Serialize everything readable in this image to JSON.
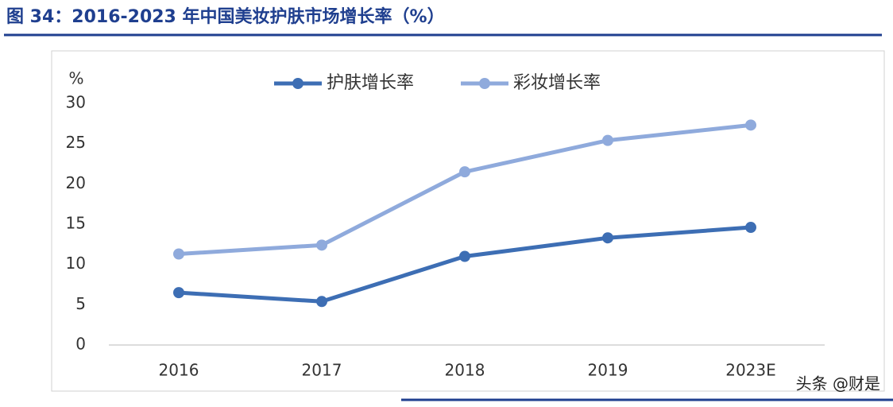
{
  "chart_data": {
    "type": "line",
    "title": "图 34：2016-2023 年中国美妆护肤市场增长率（%）",
    "y_label": "%",
    "categories": [
      "2016",
      "2017",
      "2018",
      "2019",
      "2023E"
    ],
    "series": [
      {
        "name": "护肤增长率",
        "color": "#3d6eb4",
        "values": [
          6.5,
          5.4,
          11.0,
          13.3,
          14.6
        ]
      },
      {
        "name": "彩妆增长率",
        "color": "#8faadc",
        "values": [
          11.3,
          12.4,
          21.5,
          25.4,
          27.3
        ]
      }
    ],
    "ylim": [
      0,
      30
    ],
    "yticks": [
      0,
      5,
      10,
      15,
      20,
      25,
      30
    ],
    "legend": "top",
    "watermark": "头条 @财是"
  }
}
